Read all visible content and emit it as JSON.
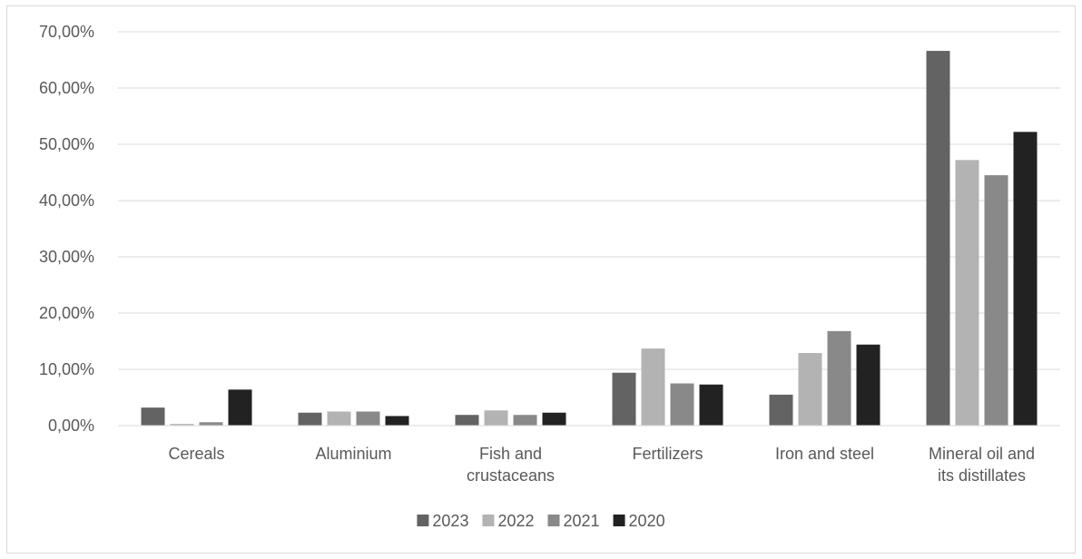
{
  "chart_data": {
    "type": "bar",
    "categories": [
      [
        "Cereals"
      ],
      [
        "Aluminium"
      ],
      [
        "Fish and",
        "crustaceans"
      ],
      [
        "Fertilizers"
      ],
      [
        "Iron and steel"
      ],
      [
        "Mineral oil and",
        "its distillates"
      ]
    ],
    "series": [
      {
        "name": "2023",
        "color": "#636363",
        "values": [
          3.2,
          2.3,
          1.9,
          9.4,
          5.5,
          66.6
        ]
      },
      {
        "name": "2022",
        "color": "#b3b3b3",
        "values": [
          0.3,
          2.5,
          2.7,
          13.7,
          12.9,
          47.2
        ]
      },
      {
        "name": "2021",
        "color": "#898989",
        "values": [
          0.6,
          2.5,
          1.9,
          7.5,
          16.8,
          44.5
        ]
      },
      {
        "name": "2020",
        "color": "#222222",
        "values": [
          6.4,
          1.7,
          2.3,
          7.3,
          14.4,
          52.2
        ]
      }
    ],
    "y_ticks": [
      "0,00%",
      "10,00%",
      "20,00%",
      "30,00%",
      "40,00%",
      "50,00%",
      "60,00%",
      "70,00%"
    ],
    "ylim": [
      0,
      70
    ],
    "grid": true,
    "legend_position": "bottom"
  }
}
